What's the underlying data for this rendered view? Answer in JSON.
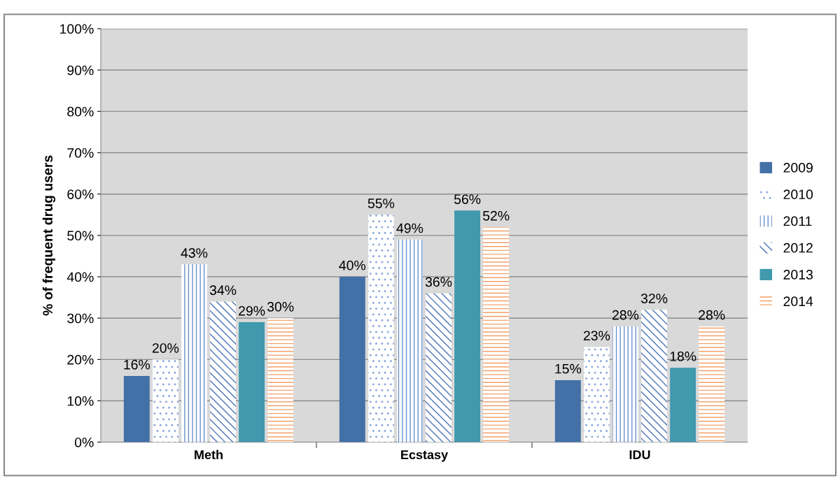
{
  "chart_data": {
    "type": "bar",
    "ylabel": "% of frequent drug users",
    "categories": [
      "Meth",
      "Ecstasy",
      "IDU"
    ],
    "series": [
      {
        "name": "2009",
        "color": "#4470a8",
        "values": [
          16,
          40,
          15
        ]
      },
      {
        "name": "2010",
        "color": "#8eaadb",
        "values": [
          20,
          55,
          23
        ]
      },
      {
        "name": "2011",
        "color": "#6a8fd0",
        "values": [
          43,
          49,
          28
        ]
      },
      {
        "name": "2012",
        "color": "#4a73b8",
        "values": [
          34,
          36,
          32
        ]
      },
      {
        "name": "2013",
        "color": "#4199ae",
        "values": [
          29,
          56,
          18
        ]
      },
      {
        "name": "2014",
        "color": "#f2a26a",
        "values": [
          30,
          52,
          28
        ]
      }
    ],
    "ylim": [
      0,
      100
    ],
    "yticks": [
      {
        "value": 0,
        "label": "0%"
      },
      {
        "value": 10,
        "label": "10%"
      },
      {
        "value": 20,
        "label": "20%"
      },
      {
        "value": 30,
        "label": "30%"
      },
      {
        "value": 40,
        "label": "40%"
      },
      {
        "value": 50,
        "label": "50%"
      },
      {
        "value": 60,
        "label": "60%"
      },
      {
        "value": 70,
        "label": "70%"
      },
      {
        "value": 80,
        "label": "80%"
      },
      {
        "value": 90,
        "label": "90%"
      },
      {
        "value": 100,
        "label": "100%"
      }
    ],
    "value_labels": [
      [
        "16%",
        "40%",
        "15%"
      ],
      [
        "20%",
        "55%",
        "23%"
      ],
      [
        "43%",
        "49%",
        "28%"
      ],
      [
        "34%",
        "36%",
        "32%"
      ],
      [
        "29%",
        "56%",
        "18%"
      ],
      [
        "30%",
        "52%",
        "28%"
      ]
    ],
    "grid": "y",
    "legend": "right"
  }
}
